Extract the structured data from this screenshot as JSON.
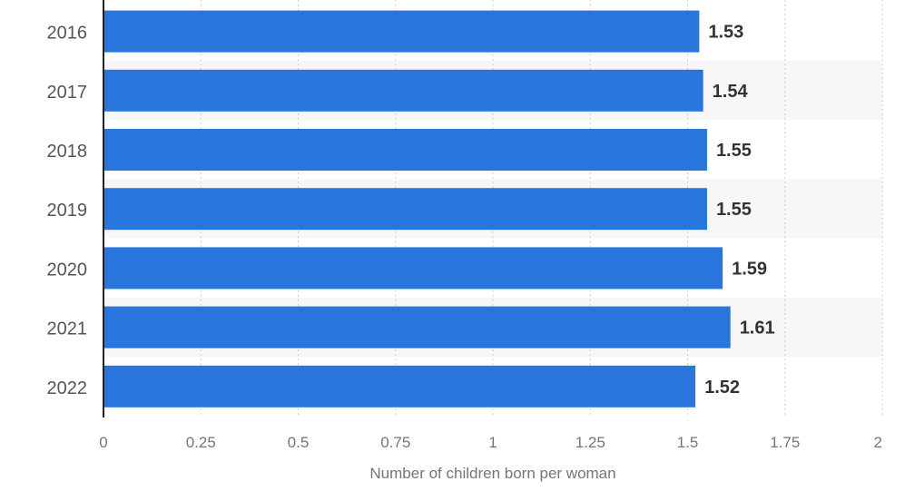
{
  "chart_data": {
    "type": "bar",
    "orientation": "horizontal",
    "categories": [
      "2016",
      "2017",
      "2018",
      "2019",
      "2020",
      "2021",
      "2022"
    ],
    "values": [
      1.53,
      1.54,
      1.55,
      1.55,
      1.59,
      1.61,
      1.52
    ],
    "data_labels": [
      "1.53",
      "1.54",
      "1.55",
      "1.55",
      "1.59",
      "1.61",
      "1.52"
    ],
    "xlabel": "Number of children born per woman",
    "xlim": [
      0,
      2
    ],
    "xticks": [
      0,
      0.25,
      0.5,
      0.75,
      1,
      1.25,
      1.5,
      1.75,
      2
    ],
    "xtick_labels": [
      "0",
      "0.25",
      "0.5",
      "0.75",
      "1",
      "1.25",
      "1.5",
      "1.75",
      "2"
    ],
    "grid": "vertical dotted",
    "colors": {
      "bar": "#2876dd",
      "band": "#f7f7f7",
      "grid": "#cfcfcf",
      "axis": "#222222",
      "label": "#555555",
      "value": "#333333",
      "xtick": "#757575"
    }
  }
}
